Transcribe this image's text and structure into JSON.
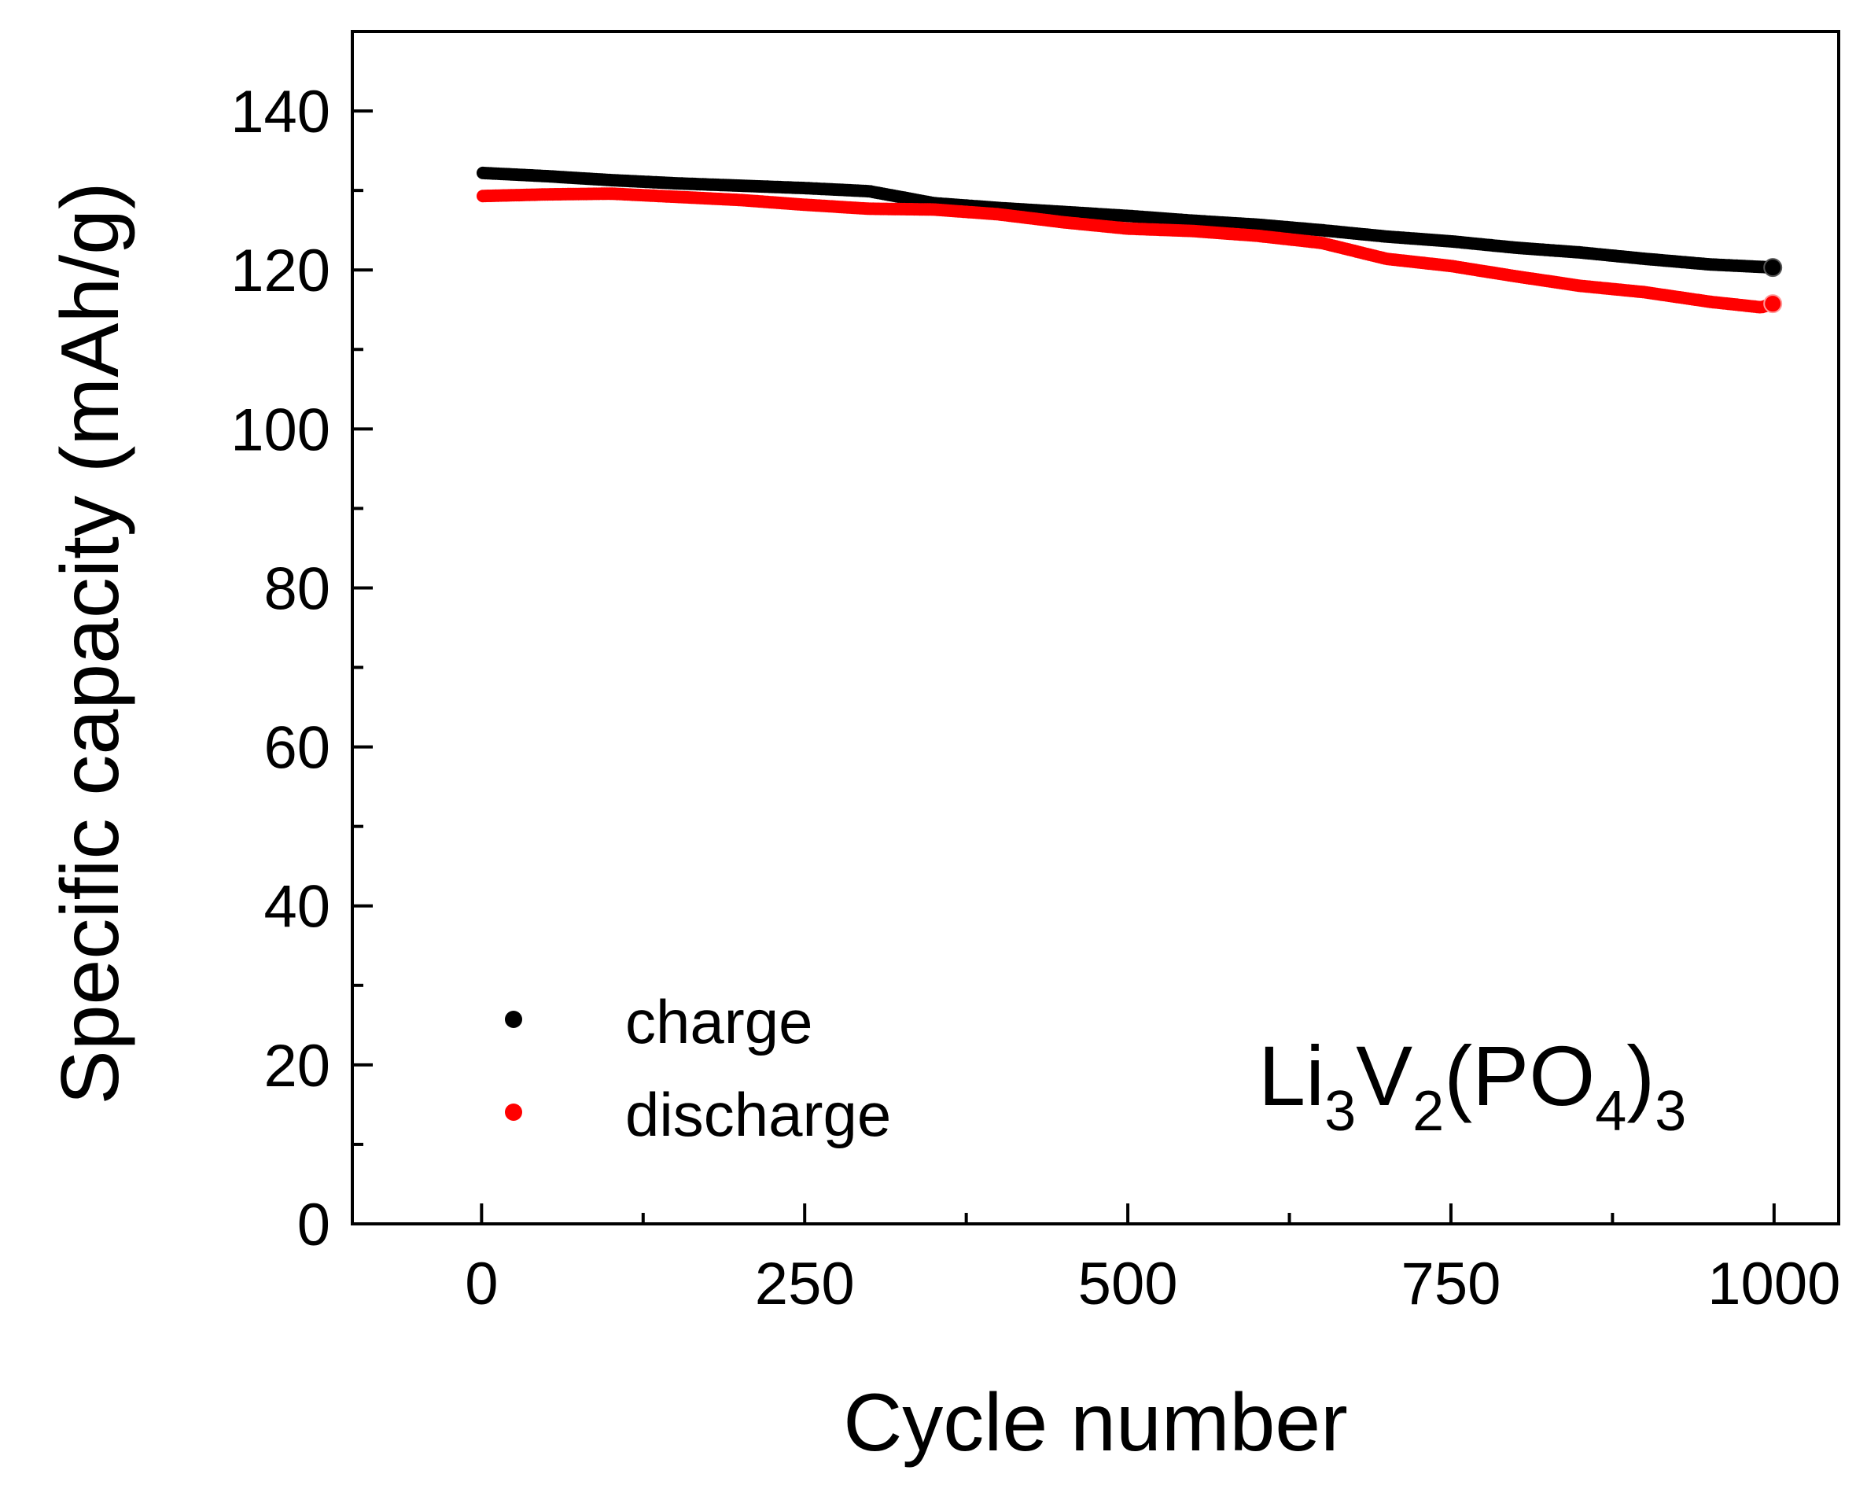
{
  "chart_data": {
    "type": "scatter",
    "xlabel": "Cycle number",
    "ylabel": "Specific capacity (mAh/g)",
    "xlim": [
      -100,
      1050
    ],
    "ylim": [
      0,
      150
    ],
    "xticks": [
      0,
      250,
      500,
      750,
      1000
    ],
    "xtick_labels": [
      "0",
      "250",
      "500",
      "750",
      "1000"
    ],
    "yticks": [
      0,
      20,
      40,
      60,
      80,
      100,
      120,
      140
    ],
    "ytick_labels": [
      "0",
      "20",
      "40",
      "60",
      "80",
      "100",
      "120",
      "140"
    ],
    "x_minor_step": 125,
    "y_minor_step": 10,
    "grid": false,
    "legend_position": "bottom-left",
    "annotation": {
      "parts": [
        {
          "text": "Li",
          "sub": false
        },
        {
          "text": "3",
          "sub": true
        },
        {
          "text": "V",
          "sub": false
        },
        {
          "text": "2",
          "sub": true
        },
        {
          "text": "(PO",
          "sub": false
        },
        {
          "text": "4",
          "sub": true
        },
        {
          "text": ")",
          "sub": false
        },
        {
          "text": "3",
          "sub": true
        }
      ]
    },
    "series": [
      {
        "name": "charge",
        "color": "#000000",
        "x": [
          1,
          50,
          100,
          150,
          200,
          250,
          300,
          350,
          400,
          450,
          500,
          550,
          600,
          650,
          700,
          750,
          800,
          850,
          900,
          950,
          1000
        ],
        "y": [
          132.2,
          131.8,
          131.3,
          130.9,
          130.6,
          130.3,
          129.9,
          128.4,
          127.8,
          127.3,
          126.8,
          126.2,
          125.7,
          125.0,
          124.2,
          123.6,
          122.8,
          122.2,
          121.4,
          120.7,
          120.3
        ]
      },
      {
        "name": "discharge",
        "color": "#ff0000",
        "x": [
          1,
          50,
          100,
          150,
          200,
          250,
          300,
          350,
          400,
          450,
          500,
          550,
          600,
          650,
          700,
          750,
          800,
          850,
          900,
          950,
          990,
          1000
        ],
        "y": [
          129.3,
          129.5,
          129.6,
          129.2,
          128.8,
          128.2,
          127.7,
          127.6,
          127.0,
          126.0,
          125.2,
          124.9,
          124.3,
          123.4,
          121.4,
          120.5,
          119.2,
          118.0,
          117.2,
          116.0,
          115.3,
          115.8
        ]
      }
    ]
  }
}
